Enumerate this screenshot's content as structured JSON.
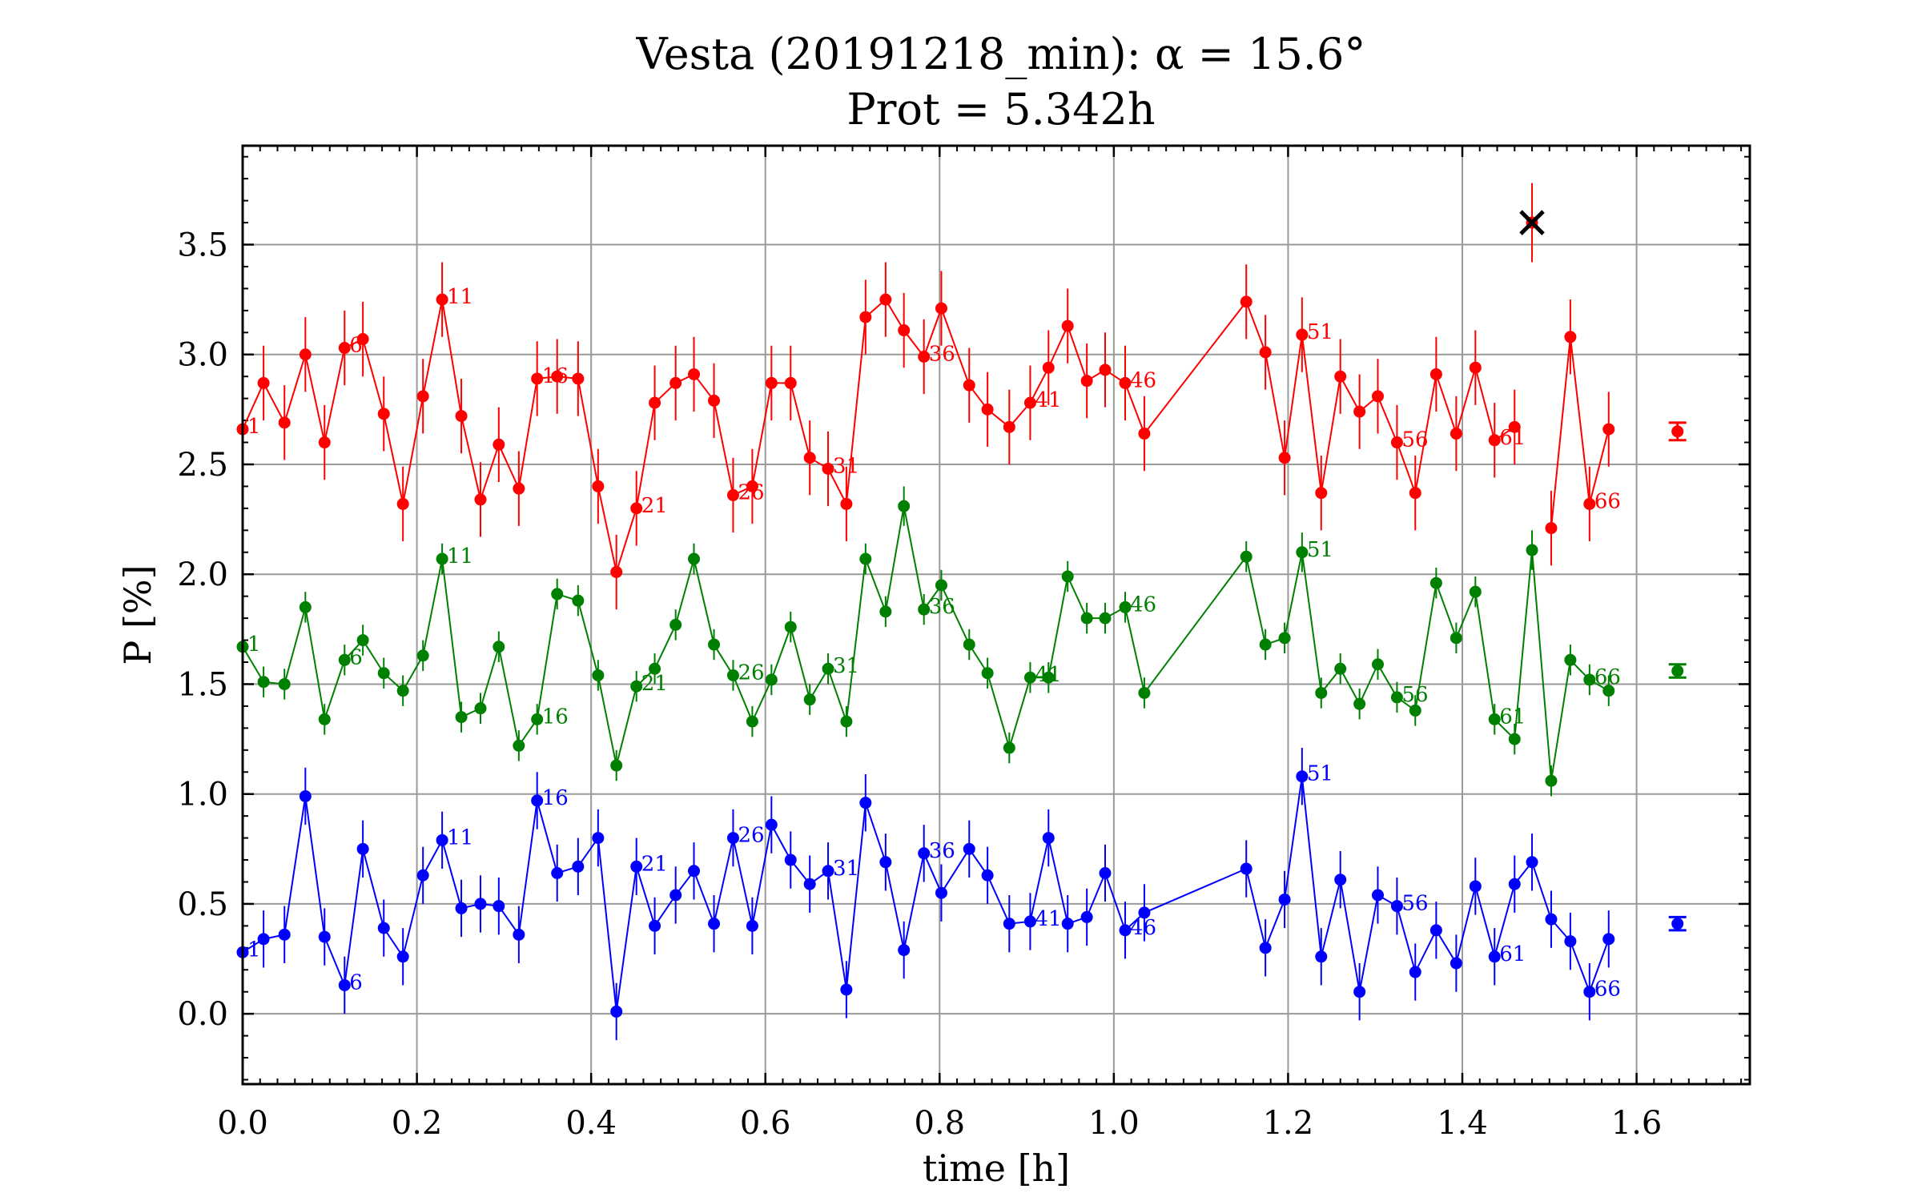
{
  "chart_data": {
    "type": "scatter",
    "title": "Vesta (20191218_min): α = 15.6°",
    "subtitle": "Prot = 5.342h",
    "xlabel": "time [h]",
    "ylabel": "P [%]",
    "xlim": [
      0,
      1.73
    ],
    "ylim": [
      -0.32,
      3.95
    ],
    "xticks": [
      0.0,
      0.2,
      0.4,
      0.6,
      0.8,
      1.0,
      1.2,
      1.4,
      1.6
    ],
    "yticks": [
      0.0,
      0.5,
      1.0,
      1.5,
      2.0,
      2.5,
      3.0,
      3.5
    ],
    "xtick_labels": [
      "0.0",
      "0.2",
      "0.4",
      "0.6",
      "0.8",
      "1.0",
      "1.2",
      "1.4",
      "1.6"
    ],
    "ytick_labels": [
      "0.0",
      "0.5",
      "1.0",
      "1.5",
      "2.0",
      "2.5",
      "3.0",
      "3.5"
    ],
    "grid": true,
    "error_bars": true,
    "x": [
      0.0,
      0.024,
      0.048,
      0.072,
      0.094,
      0.117,
      0.138,
      0.162,
      0.184,
      0.207,
      0.229,
      0.251,
      0.273,
      0.294,
      0.317,
      0.338,
      0.361,
      0.385,
      0.408,
      0.429,
      0.452,
      0.473,
      0.497,
      0.518,
      0.541,
      0.563,
      0.585,
      0.607,
      0.629,
      0.651,
      0.672,
      0.693,
      0.715,
      0.738,
      0.759,
      0.782,
      0.802,
      0.834,
      0.855,
      0.88,
      0.904,
      0.925,
      0.947,
      0.969,
      0.99,
      1.013,
      1.035,
      1.152,
      1.174,
      1.196,
      1.216,
      1.238,
      1.26,
      1.282,
      1.303,
      1.325,
      1.346,
      1.37,
      1.393,
      1.415,
      1.437,
      1.46,
      1.48,
      1.502,
      1.524,
      1.546,
      1.568
    ],
    "series": [
      {
        "color": "#ff0000",
        "values": [
          2.66,
          2.87,
          2.69,
          3.0,
          2.6,
          3.03,
          3.07,
          2.73,
          2.32,
          2.81,
          3.25,
          2.72,
          2.34,
          2.59,
          2.39,
          2.89,
          2.9,
          2.89,
          2.4,
          2.01,
          2.3,
          2.78,
          2.87,
          2.91,
          2.79,
          2.36,
          2.4,
          2.87,
          2.87,
          2.53,
          2.48,
          2.32,
          3.17,
          3.25,
          3.11,
          2.99,
          3.21,
          2.86,
          2.75,
          2.67,
          2.78,
          2.94,
          3.13,
          2.88,
          2.93,
          2.87,
          2.64,
          3.24,
          3.01,
          2.53,
          3.09,
          2.37,
          2.9,
          2.74,
          2.81,
          2.6,
          2.37,
          2.91,
          2.64,
          2.94,
          2.61,
          2.67,
          null,
          2.21,
          3.08,
          2.32,
          2.66
        ],
        "errors": [
          0.17,
          0.17,
          0.17,
          0.17,
          0.17,
          0.17,
          0.17,
          0.17,
          0.17,
          0.17,
          0.17,
          0.17,
          0.17,
          0.17,
          0.17,
          0.17,
          0.17,
          0.17,
          0.17,
          0.17,
          0.17,
          0.17,
          0.17,
          0.17,
          0.17,
          0.17,
          0.17,
          0.17,
          0.17,
          0.17,
          0.17,
          0.17,
          0.17,
          0.17,
          0.17,
          0.17,
          0.17,
          0.17,
          0.17,
          0.17,
          0.17,
          0.17,
          0.17,
          0.17,
          0.17,
          0.17,
          0.17,
          0.17,
          0.17,
          0.17,
          0.17,
          0.17,
          0.17,
          0.17,
          0.17,
          0.17,
          0.17,
          0.17,
          0.17,
          0.17,
          0.17,
          0.17,
          null,
          0.17,
          0.17,
          0.17,
          0.17
        ],
        "rejected": [
          {
            "x": 1.48,
            "value": 3.6,
            "error": 0.18
          }
        ],
        "mean": {
          "x": 1.647,
          "value": 2.65,
          "error": 0.04
        },
        "index_labels": [
          {
            "index": 0,
            "text": "1"
          },
          {
            "index": 5,
            "text": "6"
          },
          {
            "index": 10,
            "text": "11"
          },
          {
            "index": 15,
            "text": "16"
          },
          {
            "index": 20,
            "text": "21"
          },
          {
            "index": 25,
            "text": "26"
          },
          {
            "index": 30,
            "text": "31"
          },
          {
            "index": 35,
            "text": "36"
          },
          {
            "index": 40,
            "text": "41"
          },
          {
            "index": 45,
            "text": "46"
          },
          {
            "index": 50,
            "text": "51"
          },
          {
            "index": 55,
            "text": "56"
          },
          {
            "index": 60,
            "text": "61"
          },
          {
            "index": 65,
            "text": "66"
          }
        ]
      },
      {
        "color": "#008000",
        "values": [
          1.67,
          1.51,
          1.5,
          1.85,
          1.34,
          1.61,
          1.7,
          1.55,
          1.47,
          1.63,
          2.07,
          1.35,
          1.39,
          1.67,
          1.22,
          1.34,
          1.91,
          1.88,
          1.54,
          1.13,
          1.49,
          1.57,
          1.77,
          2.07,
          1.68,
          1.54,
          1.33,
          1.52,
          1.76,
          1.43,
          1.57,
          1.33,
          2.07,
          1.83,
          2.31,
          1.84,
          1.95,
          1.68,
          1.55,
          1.21,
          1.53,
          1.53,
          1.99,
          1.8,
          1.8,
          1.85,
          1.46,
          2.08,
          1.68,
          1.71,
          2.1,
          1.46,
          1.57,
          1.41,
          1.59,
          1.44,
          1.38,
          1.96,
          1.71,
          1.92,
          1.34,
          1.25,
          2.11,
          1.06,
          1.61,
          1.52,
          1.47
        ],
        "errors": [
          0.07,
          0.07,
          0.07,
          0.07,
          0.07,
          0.07,
          0.07,
          0.07,
          0.07,
          0.07,
          0.07,
          0.07,
          0.07,
          0.07,
          0.07,
          0.07,
          0.07,
          0.07,
          0.07,
          0.07,
          0.07,
          0.07,
          0.07,
          0.07,
          0.07,
          0.07,
          0.07,
          0.07,
          0.07,
          0.07,
          0.07,
          0.07,
          0.07,
          0.07,
          0.09,
          0.07,
          0.07,
          0.07,
          0.07,
          0.07,
          0.07,
          0.07,
          0.07,
          0.07,
          0.07,
          0.07,
          0.07,
          0.07,
          0.07,
          0.07,
          0.09,
          0.07,
          0.07,
          0.07,
          0.07,
          0.07,
          0.07,
          0.07,
          0.07,
          0.07,
          0.07,
          0.07,
          0.09,
          0.07,
          0.07,
          0.07,
          0.07
        ],
        "mean": {
          "x": 1.647,
          "value": 1.56,
          "error": 0.03
        },
        "index_labels": [
          {
            "index": 0,
            "text": "1"
          },
          {
            "index": 5,
            "text": "6"
          },
          {
            "index": 10,
            "text": "11"
          },
          {
            "index": 15,
            "text": "16"
          },
          {
            "index": 20,
            "text": "21"
          },
          {
            "index": 25,
            "text": "26"
          },
          {
            "index": 30,
            "text": "31"
          },
          {
            "index": 35,
            "text": "36"
          },
          {
            "index": 40,
            "text": "41"
          },
          {
            "index": 45,
            "text": "46"
          },
          {
            "index": 50,
            "text": "51"
          },
          {
            "index": 55,
            "text": "56"
          },
          {
            "index": 60,
            "text": "61"
          },
          {
            "index": 65,
            "text": "66"
          }
        ]
      },
      {
        "color": "#0000ff",
        "values": [
          0.28,
          0.34,
          0.36,
          0.99,
          0.35,
          0.13,
          0.75,
          0.39,
          0.26,
          0.63,
          0.79,
          0.48,
          0.5,
          0.49,
          0.36,
          0.97,
          0.64,
          0.67,
          0.8,
          0.01,
          0.67,
          0.4,
          0.54,
          0.65,
          0.41,
          0.8,
          0.4,
          0.86,
          0.7,
          0.59,
          0.65,
          0.11,
          0.96,
          0.69,
          0.29,
          0.73,
          0.55,
          0.75,
          0.63,
          0.41,
          0.42,
          0.8,
          0.41,
          0.44,
          0.64,
          0.38,
          0.46,
          0.66,
          0.3,
          0.52,
          1.08,
          0.26,
          0.61,
          0.1,
          0.54,
          0.49,
          0.19,
          0.38,
          0.23,
          0.58,
          0.26,
          0.59,
          0.69,
          0.43,
          0.33,
          0.1,
          0.34
        ],
        "errors": [
          0.13,
          0.13,
          0.13,
          0.13,
          0.13,
          0.13,
          0.13,
          0.13,
          0.13,
          0.13,
          0.13,
          0.13,
          0.13,
          0.13,
          0.13,
          0.13,
          0.13,
          0.13,
          0.13,
          0.13,
          0.13,
          0.13,
          0.13,
          0.13,
          0.13,
          0.13,
          0.13,
          0.13,
          0.13,
          0.13,
          0.13,
          0.13,
          0.13,
          0.13,
          0.13,
          0.13,
          0.13,
          0.13,
          0.13,
          0.13,
          0.13,
          0.13,
          0.13,
          0.13,
          0.13,
          0.13,
          0.13,
          0.13,
          0.13,
          0.13,
          0.13,
          0.13,
          0.13,
          0.13,
          0.13,
          0.13,
          0.13,
          0.13,
          0.13,
          0.13,
          0.13,
          0.13,
          0.13,
          0.13,
          0.13,
          0.13,
          0.13
        ],
        "mean": {
          "x": 1.647,
          "value": 0.41,
          "error": 0.03
        },
        "index_labels": [
          {
            "index": 0,
            "text": "1"
          },
          {
            "index": 5,
            "text": "6"
          },
          {
            "index": 10,
            "text": "11"
          },
          {
            "index": 15,
            "text": "16"
          },
          {
            "index": 20,
            "text": "21"
          },
          {
            "index": 25,
            "text": "26"
          },
          {
            "index": 30,
            "text": "31"
          },
          {
            "index": 35,
            "text": "36"
          },
          {
            "index": 40,
            "text": "41"
          },
          {
            "index": 45,
            "text": "46"
          },
          {
            "index": 50,
            "text": "51"
          },
          {
            "index": 55,
            "text": "56"
          },
          {
            "index": 60,
            "text": "61"
          },
          {
            "index": 65,
            "text": "66"
          }
        ]
      }
    ]
  }
}
